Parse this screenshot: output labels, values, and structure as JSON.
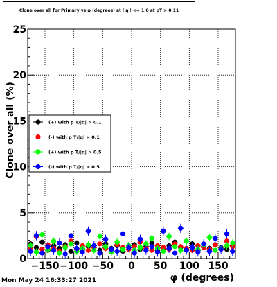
{
  "chart_data": {
    "type": "scatter",
    "title": "Clone  over all for Primary vs φ (degrees) at | η | <= 1.0 at pT > 0.11",
    "xlabel": "φ (degrees)",
    "ylabel": "Clone  over all (%)",
    "xlim": [
      -180,
      180
    ],
    "ylim": [
      0,
      25
    ],
    "x_ticks": [
      -150,
      -100,
      -50,
      0,
      50,
      100,
      150
    ],
    "x_tick_labels": [
      "−150",
      "−100",
      "−50",
      "0",
      "50",
      "100",
      "150"
    ],
    "y_ticks": [
      0,
      5,
      10,
      15,
      20,
      25
    ],
    "y_tick_labels": [
      "0",
      "5",
      "10",
      "15",
      "20",
      "25"
    ],
    "grid": true,
    "legend_position": "left",
    "series": [
      {
        "name": "(+) with p T/|q| > 0.1",
        "color": "#000000",
        "x": [
          -175,
          -165,
          -155,
          -145,
          -135,
          -125,
          -115,
          -105,
          -95,
          -85,
          -75,
          -65,
          -55,
          -45,
          -35,
          -25,
          -15,
          -5,
          5,
          15,
          25,
          35,
          45,
          55,
          65,
          75,
          85,
          95,
          105,
          115,
          125,
          135,
          145,
          155,
          165,
          175
        ],
        "y": [
          1.6,
          1.2,
          1.8,
          0.9,
          1.4,
          1.1,
          1.5,
          0.8,
          1.7,
          1.0,
          1.3,
          1.2,
          0.9,
          1.6,
          1.1,
          1.4,
          0.8,
          1.2,
          1.5,
          1.0,
          1.3,
          1.7,
          0.9,
          1.1,
          1.4,
          1.8,
          1.2,
          1.0,
          1.6,
          0.9,
          1.3,
          1.1,
          1.5,
          1.2,
          1.0,
          1.4
        ],
        "err": [
          0.3,
          0.3,
          0.3,
          0.3,
          0.3,
          0.3,
          0.3,
          0.3,
          0.3,
          0.3,
          0.3,
          0.3,
          0.3,
          0.3,
          0.3,
          0.3,
          0.3,
          0.3,
          0.3,
          0.3,
          0.3,
          0.3,
          0.3,
          0.3,
          0.3,
          0.3,
          0.3,
          0.3,
          0.3,
          0.3,
          0.3,
          0.3,
          0.3,
          0.3,
          0.3,
          0.3
        ]
      },
      {
        "name": "(-) with p T/|q| > 0.1",
        "color": "#ff0000",
        "x": [
          -175,
          -165,
          -155,
          -145,
          -135,
          -125,
          -115,
          -105,
          -95,
          -85,
          -75,
          -65,
          -55,
          -45,
          -35,
          -25,
          -15,
          -5,
          5,
          15,
          25,
          35,
          45,
          55,
          65,
          75,
          85,
          95,
          105,
          115,
          125,
          135,
          145,
          155,
          165,
          175
        ],
        "y": [
          1.2,
          2.4,
          1.0,
          1.5,
          1.1,
          0.8,
          1.3,
          1.9,
          1.0,
          1.4,
          0.9,
          1.2,
          1.6,
          1.1,
          0.8,
          1.5,
          1.2,
          1.0,
          1.3,
          1.8,
          1.1,
          0.9,
          1.4,
          1.2,
          1.0,
          1.6,
          1.3,
          1.1,
          0.9,
          1.4,
          1.2,
          1.0,
          1.5,
          1.1,
          1.9,
          1.3
        ],
        "err": [
          0.3,
          0.3,
          0.3,
          0.3,
          0.3,
          0.3,
          0.3,
          0.3,
          0.3,
          0.3,
          0.3,
          0.3,
          0.3,
          0.3,
          0.3,
          0.3,
          0.3,
          0.3,
          0.3,
          0.3,
          0.3,
          0.3,
          0.3,
          0.3,
          0.3,
          0.3,
          0.3,
          0.3,
          0.3,
          0.3,
          0.3,
          0.3,
          0.3,
          0.3,
          0.3,
          0.3
        ]
      },
      {
        "name": "(+) with p T/|q| > 0.5",
        "color": "#00ff00",
        "x": [
          -175,
          -165,
          -155,
          -145,
          -135,
          -125,
          -115,
          -105,
          -95,
          -85,
          -75,
          -65,
          -55,
          -45,
          -35,
          -25,
          -15,
          -5,
          5,
          15,
          25,
          35,
          45,
          55,
          65,
          75,
          85,
          95,
          105,
          115,
          125,
          135,
          145,
          155,
          165,
          175
        ],
        "y": [
          1.4,
          0.7,
          2.6,
          1.0,
          1.9,
          0.6,
          1.2,
          1.6,
          0.8,
          1.1,
          1.5,
          0.9,
          2.4,
          1.3,
          0.7,
          1.8,
          1.0,
          1.4,
          0.9,
          1.2,
          1.6,
          2.2,
          1.1,
          0.8,
          2.4,
          1.3,
          0.9,
          1.9,
          1.2,
          1.0,
          1.5,
          2.3,
          0.9,
          1.1,
          1.4,
          1.7
        ],
        "err": [
          0.4,
          0.4,
          0.4,
          0.4,
          0.4,
          0.4,
          0.4,
          0.4,
          0.4,
          0.4,
          0.4,
          0.4,
          0.4,
          0.4,
          0.4,
          0.4,
          0.4,
          0.4,
          0.4,
          0.4,
          0.4,
          0.4,
          0.4,
          0.4,
          0.4,
          0.4,
          0.4,
          0.4,
          0.4,
          0.4,
          0.4,
          0.4,
          0.4,
          0.4,
          0.4,
          0.4
        ]
      },
      {
        "name": "(-) with p T/|q| > 0.5",
        "color": "#0000ff",
        "x": [
          -175,
          -165,
          -155,
          -145,
          -135,
          -125,
          -115,
          -105,
          -95,
          -85,
          -75,
          -65,
          -55,
          -45,
          -35,
          -25,
          -15,
          -5,
          5,
          15,
          25,
          35,
          45,
          55,
          65,
          75,
          85,
          95,
          105,
          115,
          125,
          135,
          145,
          155,
          165,
          175
        ],
        "y": [
          0.8,
          2.5,
          0.6,
          1.3,
          0.9,
          1.7,
          0.5,
          2.5,
          1.1,
          0.7,
          3.0,
          1.4,
          0.6,
          2.1,
          1.0,
          0.8,
          2.7,
          1.2,
          0.6,
          2.1,
          0.9,
          1.3,
          0.7,
          3.0,
          1.1,
          0.6,
          3.3,
          0.9,
          1.2,
          0.7,
          1.6,
          0.8,
          2.2,
          1.0,
          2.7,
          0.8
        ],
        "err": [
          0.5,
          0.5,
          0.5,
          0.5,
          0.5,
          0.5,
          0.5,
          0.5,
          0.5,
          0.5,
          0.5,
          0.5,
          0.5,
          0.5,
          0.5,
          0.5,
          0.5,
          0.5,
          0.5,
          0.5,
          0.5,
          0.5,
          0.5,
          0.5,
          0.5,
          0.5,
          0.5,
          0.5,
          0.5,
          0.5,
          0.5,
          0.5,
          0.5,
          0.5,
          0.5,
          0.5
        ]
      }
    ]
  },
  "footer": {
    "timestamp": "Mon May 24 16:33:27 2021"
  }
}
